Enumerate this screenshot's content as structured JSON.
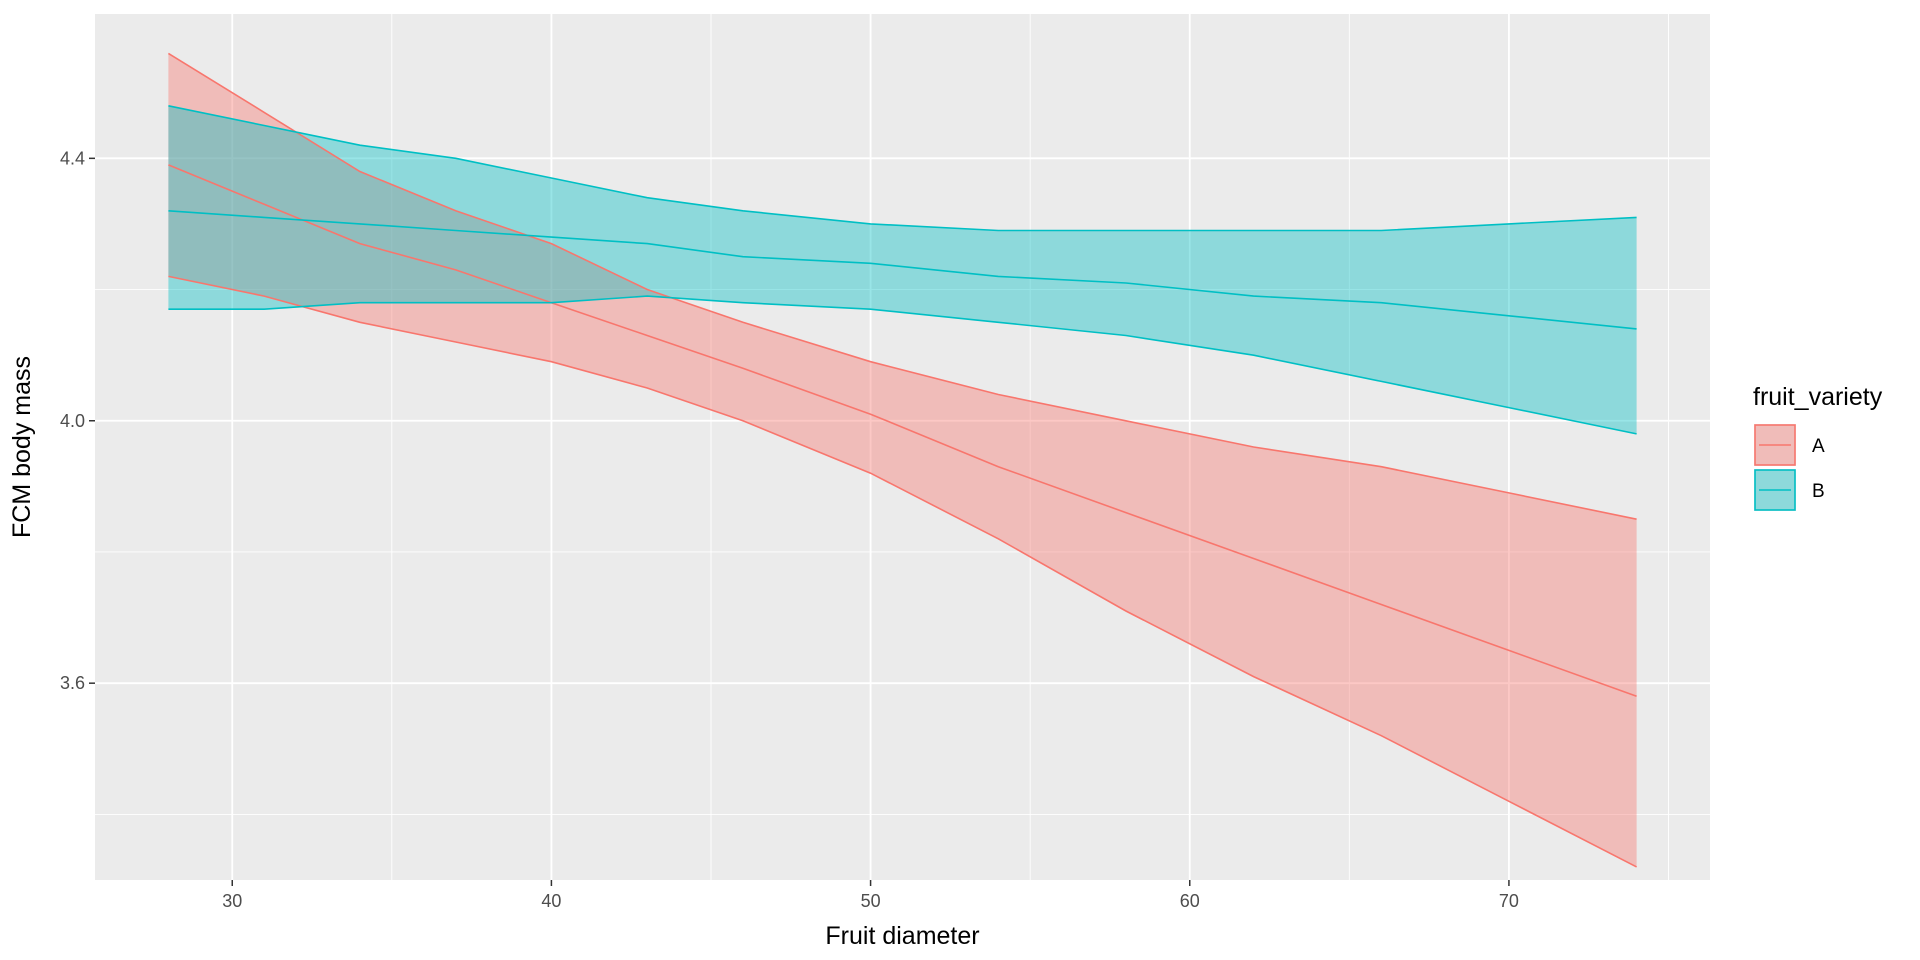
{
  "chart_data": {
    "type": "line",
    "xlabel": "Fruit diameter",
    "ylabel": "FCM body mass",
    "xlim": [
      25.7,
      76.3
    ],
    "ylim": [
      3.3,
      4.62
    ],
    "x_ticks": [
      30,
      40,
      50,
      60,
      70
    ],
    "x_tick_labels": [
      "30",
      "40",
      "50",
      "60",
      "70"
    ],
    "x_minor_ticks": [
      25,
      35,
      45,
      55,
      65,
      75
    ],
    "y_ticks": [
      3.6,
      4.0,
      4.4
    ],
    "y_tick_labels": [
      "3.6",
      "4.0",
      "4.4"
    ],
    "y_minor_ticks": [
      3.4,
      3.8,
      4.2
    ],
    "grid": true,
    "background": "#ebebeb",
    "legend": {
      "title": "fruit_variety",
      "position": "right"
    },
    "series": [
      {
        "name": "A",
        "color": "#F8766D",
        "fill": "#F8766D",
        "fill_alpha": 0.4,
        "x": [
          28,
          31,
          34,
          37,
          40,
          43,
          46,
          50,
          54,
          58,
          62,
          66,
          70,
          74
        ],
        "fit": [
          4.39,
          4.33,
          4.27,
          4.23,
          4.18,
          4.13,
          4.08,
          4.01,
          3.93,
          3.86,
          3.79,
          3.72,
          3.65,
          3.58
        ],
        "lower": [
          4.22,
          4.19,
          4.15,
          4.12,
          4.09,
          4.05,
          4.0,
          3.92,
          3.82,
          3.71,
          3.61,
          3.52,
          3.42,
          3.32
        ],
        "upper": [
          4.56,
          4.47,
          4.38,
          4.32,
          4.27,
          4.2,
          4.15,
          4.09,
          4.04,
          4.0,
          3.96,
          3.93,
          3.89,
          3.85
        ]
      },
      {
        "name": "B",
        "color": "#00BFC4",
        "fill": "#00BFC4",
        "fill_alpha": 0.4,
        "x": [
          28,
          31,
          34,
          37,
          40,
          43,
          46,
          50,
          54,
          58,
          62,
          66,
          70,
          74
        ],
        "fit": [
          4.32,
          4.31,
          4.3,
          4.29,
          4.28,
          4.27,
          4.25,
          4.24,
          4.22,
          4.21,
          4.19,
          4.18,
          4.16,
          4.14
        ],
        "lower": [
          4.17,
          4.17,
          4.18,
          4.18,
          4.18,
          4.19,
          4.18,
          4.17,
          4.15,
          4.13,
          4.1,
          4.06,
          4.02,
          3.98
        ],
        "upper": [
          4.48,
          4.45,
          4.42,
          4.4,
          4.37,
          4.34,
          4.32,
          4.3,
          4.29,
          4.29,
          4.29,
          4.29,
          4.3,
          4.31
        ]
      }
    ]
  }
}
